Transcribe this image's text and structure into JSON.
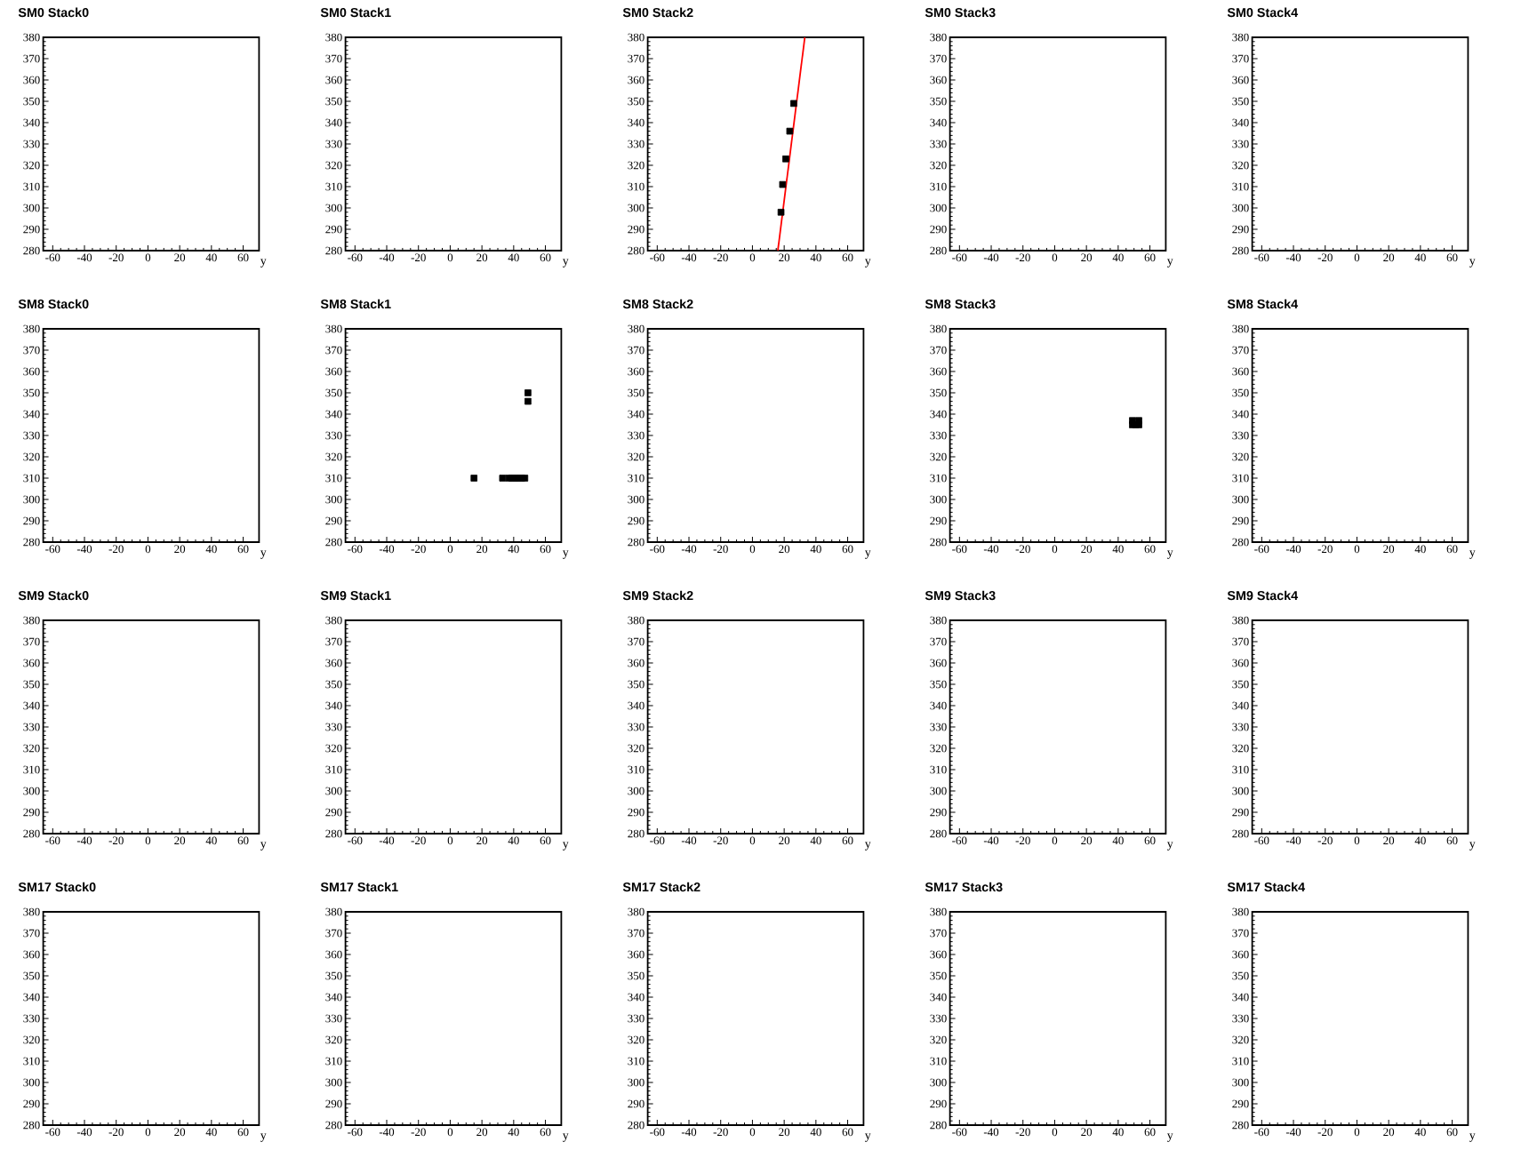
{
  "chart_data": [
    {
      "type": "scatter",
      "title": "SM0 Stack0",
      "xlabel": "y",
      "xlim": [
        -66,
        70
      ],
      "ylim": [
        280,
        380
      ],
      "xticks": [
        -60,
        -40,
        -20,
        0,
        20,
        40,
        60
      ],
      "yticks": [
        280,
        290,
        300,
        310,
        320,
        330,
        340,
        350,
        360,
        370,
        380
      ]
    },
    {
      "type": "scatter",
      "title": "SM0 Stack1",
      "xlabel": "y",
      "xlim": [
        -66,
        70
      ],
      "ylim": [
        280,
        380
      ],
      "xticks": [
        -60,
        -40,
        -20,
        0,
        20,
        40,
        60
      ],
      "yticks": [
        280,
        290,
        300,
        310,
        320,
        330,
        340,
        350,
        360,
        370,
        380
      ]
    },
    {
      "type": "scatter",
      "title": "SM0 Stack2",
      "xlabel": "y",
      "xlim": [
        -66,
        70
      ],
      "ylim": [
        280,
        380
      ],
      "xticks": [
        -60,
        -40,
        -20,
        0,
        20,
        40,
        60
      ],
      "yticks": [
        280,
        290,
        300,
        310,
        320,
        330,
        340,
        350,
        360,
        370,
        380
      ],
      "marker": "square",
      "series": [
        {
          "color": "#000000",
          "x": [
            18,
            19,
            21,
            23.5,
            26
          ],
          "values": [
            298,
            311,
            323,
            336,
            349
          ]
        },
        {
          "type": "line",
          "marker": "none",
          "color": "#ff0000",
          "x": [
            16,
            33
          ],
          "values": [
            280,
            380
          ]
        }
      ]
    },
    {
      "type": "scatter",
      "title": "SM0 Stack3",
      "xlabel": "y",
      "xlim": [
        -66,
        70
      ],
      "ylim": [
        280,
        380
      ],
      "xticks": [
        -60,
        -40,
        -20,
        0,
        20,
        40,
        60
      ],
      "yticks": [
        280,
        290,
        300,
        310,
        320,
        330,
        340,
        350,
        360,
        370,
        380
      ]
    },
    {
      "type": "scatter",
      "title": "SM0 Stack4",
      "xlabel": "y",
      "xlim": [
        -66,
        70
      ],
      "ylim": [
        280,
        380
      ],
      "xticks": [
        -60,
        -40,
        -20,
        0,
        20,
        40,
        60
      ],
      "yticks": [
        280,
        290,
        300,
        310,
        320,
        330,
        340,
        350,
        360,
        370,
        380
      ]
    },
    {
      "type": "scatter",
      "title": "SM8 Stack0",
      "xlabel": "y",
      "xlim": [
        -66,
        70
      ],
      "ylim": [
        280,
        380
      ],
      "xticks": [
        -60,
        -40,
        -20,
        0,
        20,
        40,
        60
      ],
      "yticks": [
        280,
        290,
        300,
        310,
        320,
        330,
        340,
        350,
        360,
        370,
        380
      ]
    },
    {
      "type": "scatter",
      "title": "SM8 Stack1",
      "xlabel": "y",
      "xlim": [
        -66,
        70
      ],
      "ylim": [
        280,
        380
      ],
      "xticks": [
        -60,
        -40,
        -20,
        0,
        20,
        40,
        60
      ],
      "yticks": [
        280,
        290,
        300,
        310,
        320,
        330,
        340,
        350,
        360,
        370,
        380
      ],
      "marker": "square",
      "series": [
        {
          "color": "#000000",
          "x": [
            15,
            33,
            37,
            39,
            41,
            43,
            45,
            47,
            49,
            49
          ],
          "values": [
            310,
            310,
            310,
            310,
            310,
            310,
            310,
            310,
            350,
            346
          ]
        }
      ]
    },
    {
      "type": "scatter",
      "title": "SM8 Stack2",
      "xlabel": "y",
      "xlim": [
        -66,
        70
      ],
      "ylim": [
        280,
        380
      ],
      "xticks": [
        -60,
        -40,
        -20,
        0,
        20,
        40,
        60
      ],
      "yticks": [
        280,
        290,
        300,
        310,
        320,
        330,
        340,
        350,
        360,
        370,
        380
      ]
    },
    {
      "type": "scatter",
      "title": "SM8 Stack3",
      "xlabel": "y",
      "xlim": [
        -66,
        70
      ],
      "ylim": [
        280,
        380
      ],
      "xticks": [
        -60,
        -40,
        -20,
        0,
        20,
        40,
        60
      ],
      "yticks": [
        280,
        290,
        300,
        310,
        320,
        330,
        340,
        350,
        360,
        370,
        380
      ],
      "marker": "square",
      "series": [
        {
          "color": "#000000",
          "x": [
            49,
            53,
            49,
            51,
            53
          ],
          "values": [
            337,
            337,
            335,
            335,
            335
          ]
        }
      ]
    },
    {
      "type": "scatter",
      "title": "SM8 Stack4",
      "xlabel": "y",
      "xlim": [
        -66,
        70
      ],
      "ylim": [
        280,
        380
      ],
      "xticks": [
        -60,
        -40,
        -20,
        0,
        20,
        40,
        60
      ],
      "yticks": [
        280,
        290,
        300,
        310,
        320,
        330,
        340,
        350,
        360,
        370,
        380
      ]
    },
    {
      "type": "scatter",
      "title": "SM9 Stack0",
      "xlabel": "y",
      "xlim": [
        -66,
        70
      ],
      "ylim": [
        280,
        380
      ],
      "xticks": [
        -60,
        -40,
        -20,
        0,
        20,
        40,
        60
      ],
      "yticks": [
        280,
        290,
        300,
        310,
        320,
        330,
        340,
        350,
        360,
        370,
        380
      ]
    },
    {
      "type": "scatter",
      "title": "SM9 Stack1",
      "xlabel": "y",
      "xlim": [
        -66,
        70
      ],
      "ylim": [
        280,
        380
      ],
      "xticks": [
        -60,
        -40,
        -20,
        0,
        20,
        40,
        60
      ],
      "yticks": [
        280,
        290,
        300,
        310,
        320,
        330,
        340,
        350,
        360,
        370,
        380
      ]
    },
    {
      "type": "scatter",
      "title": "SM9 Stack2",
      "xlabel": "y",
      "xlim": [
        -66,
        70
      ],
      "ylim": [
        280,
        380
      ],
      "xticks": [
        -60,
        -40,
        -20,
        0,
        20,
        40,
        60
      ],
      "yticks": [
        280,
        290,
        300,
        310,
        320,
        330,
        340,
        350,
        360,
        370,
        380
      ]
    },
    {
      "type": "scatter",
      "title": "SM9 Stack3",
      "xlabel": "y",
      "xlim": [
        -66,
        70
      ],
      "ylim": [
        280,
        380
      ],
      "xticks": [
        -60,
        -40,
        -20,
        0,
        20,
        40,
        60
      ],
      "yticks": [
        280,
        290,
        300,
        310,
        320,
        330,
        340,
        350,
        360,
        370,
        380
      ]
    },
    {
      "type": "scatter",
      "title": "SM9 Stack4",
      "xlabel": "y",
      "xlim": [
        -66,
        70
      ],
      "ylim": [
        280,
        380
      ],
      "xticks": [
        -60,
        -40,
        -20,
        0,
        20,
        40,
        60
      ],
      "yticks": [
        280,
        290,
        300,
        310,
        320,
        330,
        340,
        350,
        360,
        370,
        380
      ]
    },
    {
      "type": "scatter",
      "title": "SM17 Stack0",
      "xlabel": "y",
      "xlim": [
        -66,
        70
      ],
      "ylim": [
        280,
        380
      ],
      "xticks": [
        -60,
        -40,
        -20,
        0,
        20,
        40,
        60
      ],
      "yticks": [
        280,
        290,
        300,
        310,
        320,
        330,
        340,
        350,
        360,
        370,
        380
      ]
    },
    {
      "type": "scatter",
      "title": "SM17 Stack1",
      "xlabel": "y",
      "xlim": [
        -66,
        70
      ],
      "ylim": [
        280,
        380
      ],
      "xticks": [
        -60,
        -40,
        -20,
        0,
        20,
        40,
        60
      ],
      "yticks": [
        280,
        290,
        300,
        310,
        320,
        330,
        340,
        350,
        360,
        370,
        380
      ]
    },
    {
      "type": "scatter",
      "title": "SM17 Stack2",
      "xlabel": "y",
      "xlim": [
        -66,
        70
      ],
      "ylim": [
        280,
        380
      ],
      "xticks": [
        -60,
        -40,
        -20,
        0,
        20,
        40,
        60
      ],
      "yticks": [
        280,
        290,
        300,
        310,
        320,
        330,
        340,
        350,
        360,
        370,
        380
      ]
    },
    {
      "type": "scatter",
      "title": "SM17 Stack3",
      "xlabel": "y",
      "xlim": [
        -66,
        70
      ],
      "ylim": [
        280,
        380
      ],
      "xticks": [
        -60,
        -40,
        -20,
        0,
        20,
        40,
        60
      ],
      "yticks": [
        280,
        290,
        300,
        310,
        320,
        330,
        340,
        350,
        360,
        370,
        380
      ]
    },
    {
      "type": "scatter",
      "title": "SM17 Stack4",
      "xlabel": "y",
      "xlim": [
        -66,
        70
      ],
      "ylim": [
        280,
        380
      ],
      "xticks": [
        -60,
        -40,
        -20,
        0,
        20,
        40,
        60
      ],
      "yticks": [
        280,
        290,
        300,
        310,
        320,
        330,
        340,
        350,
        360,
        370,
        380
      ]
    }
  ]
}
